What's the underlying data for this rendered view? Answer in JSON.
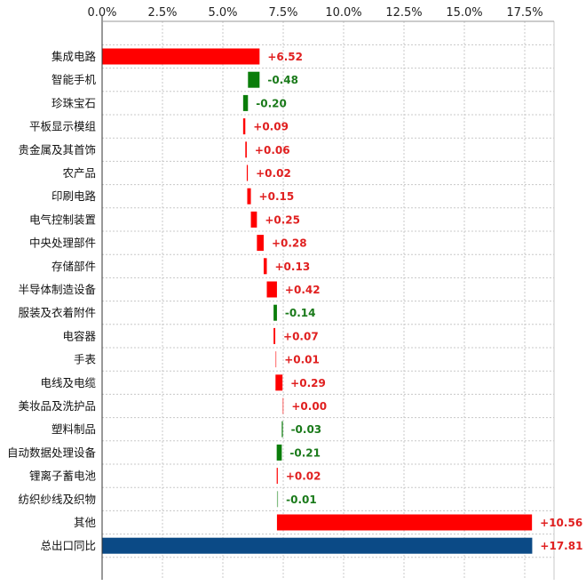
{
  "chart_data": {
    "type": "bar",
    "subtype": "waterfall-horizontal",
    "title": "",
    "xlabel": "",
    "ylabel": "",
    "xlim": [
      0,
      19
    ],
    "x_ticks": [
      0,
      2.5,
      5,
      7.5,
      10,
      12.5,
      15,
      17.5
    ],
    "x_tick_labels": [
      "0.0%",
      "2.5%",
      "5.0%",
      "7.5%",
      "10.0%",
      "12.5%",
      "15.0%",
      "17.5%"
    ],
    "x_axis_position": "top",
    "grid": true,
    "categories": [
      "集成电路",
      "智能手机",
      "珍珠宝石",
      "平板显示模组",
      "贵金属及其首饰",
      "农产品",
      "印刷电路",
      "电气控制装置",
      "中央处理部件",
      "存储部件",
      "半导体制造设备",
      "服装及衣着附件",
      "电容器",
      "手表",
      "电线及电缆",
      "美妆品及洗护品",
      "塑料制品",
      "自动数据处理设备",
      "锂离子蓄电池",
      "纺织纱线及织物",
      "其他",
      "总出口同比"
    ],
    "values": [
      6.52,
      -0.48,
      -0.2,
      0.09,
      0.06,
      0.02,
      0.15,
      0.25,
      0.28,
      0.13,
      0.42,
      -0.14,
      0.07,
      0.01,
      0.29,
      0.0,
      -0.03,
      -0.21,
      0.02,
      -0.01,
      10.56,
      17.81
    ],
    "value_labels": [
      "+6.52",
      "-0.48",
      "-0.20",
      "+0.09",
      "+0.06",
      "+0.02",
      "+0.15",
      "+0.25",
      "+0.28",
      "+0.13",
      "+0.42",
      "-0.14",
      "+0.07",
      "+0.01",
      "+0.29",
      "+0.00",
      "-0.03",
      "-0.21",
      "+0.02",
      "-0.01",
      "+10.56",
      "+17.81"
    ],
    "total_index": 21,
    "colors": {
      "positive": "#ff0000",
      "negative": "#0a7d0a",
      "total": "#0b4a86",
      "positive_text": "#e02020",
      "negative_text": "#1a7a1a",
      "grid": "#c8c8c8"
    }
  }
}
